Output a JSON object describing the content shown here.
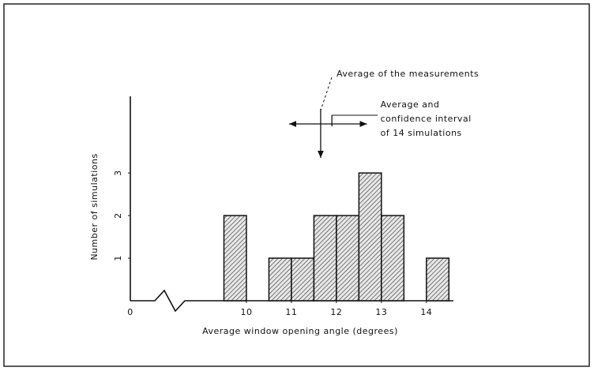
{
  "chart_data": {
    "type": "histogram",
    "xlabel": "Average window opening angle (degrees)",
    "ylabel": "Number of simulations",
    "origin_label": "0",
    "bins": [
      9.5,
      10,
      10.5,
      11,
      11.5,
      12,
      12.5,
      13,
      13.5,
      14,
      14.5
    ],
    "values": [
      2,
      0,
      1,
      1,
      2,
      2,
      3,
      2,
      0,
      1
    ],
    "color": "#ffffff",
    "hatch": true,
    "xlim": [
      9,
      14.6
    ],
    "xticks": [
      10,
      11,
      12,
      13,
      14
    ],
    "ylim": [
      0,
      4.8
    ],
    "yticks": [
      1,
      2,
      3
    ],
    "annotations": [
      {
        "text": "Average of the measurements",
        "x": 11.65
      },
      {
        "lines": [
          "Average and",
          "confidence interval",
          "of 14 simulations"
        ],
        "x": 11.9,
        "interval": [
          10.95,
          12.68
        ]
      }
    ]
  }
}
